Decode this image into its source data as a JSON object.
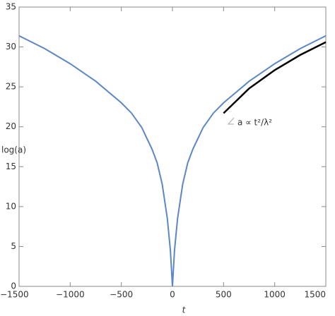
{
  "chart_data": {
    "type": "line",
    "xlabel": "t",
    "ylabel": "log(a)",
    "annotation": "a ∝ t²/λ²",
    "xlim": [
      -1500,
      1500
    ],
    "ylim": [
      0,
      35
    ],
    "xticks": [
      {
        "value": -1500,
        "label": "−1500"
      },
      {
        "value": -1000,
        "label": "−1000"
      },
      {
        "value": -500,
        "label": "−500"
      },
      0,
      500,
      1000,
      1500
    ],
    "yticks": [
      0,
      5,
      10,
      15,
      20,
      25,
      30,
      35
    ],
    "series": [
      {
        "color": "#5b87c5",
        "x": [
          -1500,
          -1250,
          -1000,
          -750,
          -500,
          -400,
          -300,
          -200,
          -150,
          -100,
          -50,
          -20,
          0,
          20,
          50,
          100,
          150,
          200,
          300,
          400,
          500,
          750,
          1000,
          1250,
          1500
        ],
        "values": [
          31.4,
          29.8,
          27.9,
          25.7,
          23.0,
          21.7,
          19.9,
          17.2,
          15.5,
          12.8,
          8.5,
          4.5,
          0,
          4.5,
          8.5,
          12.8,
          15.5,
          17.2,
          19.9,
          21.7,
          23.0,
          25.7,
          27.9,
          29.8,
          31.4
        ]
      },
      {
        "color": "#000000",
        "x": [
          500,
          750,
          1000,
          1250,
          1500
        ],
        "values": [
          21.7,
          24.8,
          27.1,
          29.0,
          30.6
        ]
      }
    ]
  }
}
